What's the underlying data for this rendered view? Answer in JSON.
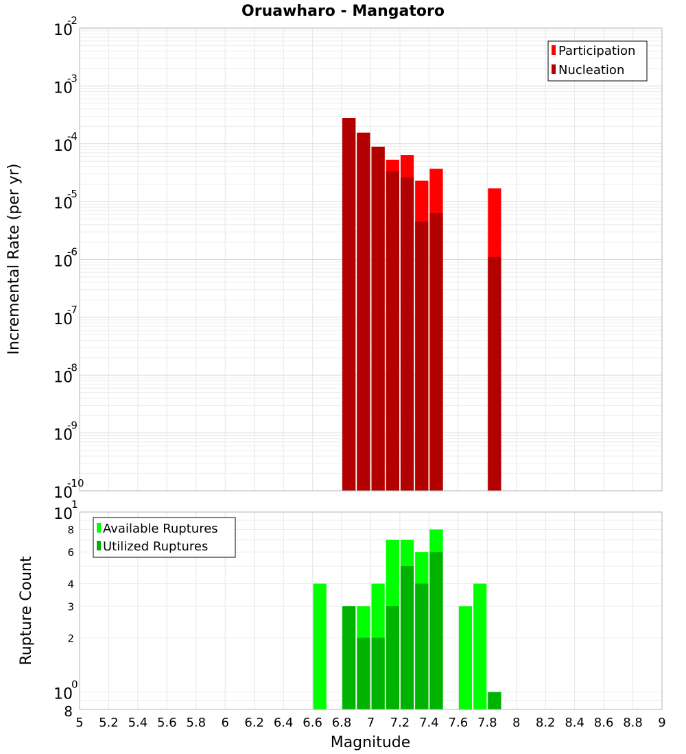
{
  "chart_data": [
    {
      "type": "bar",
      "title": "Oruawharo - Mangatoro",
      "xlabel": "Magnitude",
      "ylabel": "Incremental Rate (per yr)",
      "xlim": [
        5,
        9
      ],
      "ylim": [
        1e-10,
        0.01
      ],
      "yscale": "log",
      "xticks": [
        "5",
        "5.2",
        "5.4",
        "5.6",
        "5.8",
        "6",
        "6.2",
        "6.4",
        "6.6",
        "6.8",
        "7",
        "7.2",
        "7.4",
        "7.6",
        "7.8",
        "8",
        "8.2",
        "8.4",
        "8.6",
        "8.8",
        "9"
      ],
      "yticks": [
        {
          "base": "10",
          "exp": "-2"
        },
        {
          "base": "10",
          "exp": "-3"
        },
        {
          "base": "10",
          "exp": "-4"
        },
        {
          "base": "10",
          "exp": "-5"
        },
        {
          "base": "10",
          "exp": "-6"
        },
        {
          "base": "10",
          "exp": "-7"
        },
        {
          "base": "10",
          "exp": "-8"
        },
        {
          "base": "10",
          "exp": "-9"
        },
        {
          "base": "10",
          "exp": "-10"
        }
      ],
      "grid": true,
      "legend_position": "top-right",
      "bar_width": 0.1,
      "x": [
        6.85,
        6.95,
        7.05,
        7.15,
        7.25,
        7.35,
        7.45,
        7.85
      ],
      "series": [
        {
          "name": "Participation",
          "color": "#ff0000",
          "values": [
            0.00028,
            0.000155,
            8.9e-05,
            5.3e-05,
            6.4e-05,
            2.3e-05,
            3.7e-05,
            1.7e-05
          ]
        },
        {
          "name": "Nucleation",
          "color": "#b30000",
          "values": [
            0.00028,
            0.000155,
            8.9e-05,
            3.4e-05,
            2.6e-05,
            4.5e-06,
            6.3e-06,
            1.1e-06
          ]
        }
      ]
    },
    {
      "type": "bar",
      "xlabel": "Magnitude",
      "ylabel": "Rupture Count",
      "xlim": [
        5,
        9
      ],
      "ylim": [
        0.8,
        10
      ],
      "yscale": "log",
      "xticks": [
        "5",
        "5.2",
        "5.4",
        "5.6",
        "5.8",
        "6",
        "6.2",
        "6.4",
        "6.6",
        "6.8",
        "7",
        "7.2",
        "7.4",
        "7.6",
        "7.8",
        "8",
        "8.2",
        "8.4",
        "8.6",
        "8.8",
        "9"
      ],
      "yticks_major": [
        {
          "value": 10,
          "base": "10",
          "exp": "1"
        },
        {
          "value": 1,
          "base": "10",
          "exp": "0"
        }
      ],
      "yticks_minor": [
        {
          "value": 8,
          "label": "8"
        },
        {
          "value": 6,
          "label": "6"
        },
        {
          "value": 4,
          "label": "4"
        },
        {
          "value": 3,
          "label": "3"
        },
        {
          "value": 2,
          "label": "2"
        }
      ],
      "ytick_bottom": "8",
      "grid": true,
      "legend_position": "top-left",
      "bar_width": 0.1,
      "x": [
        6.65,
        6.85,
        6.95,
        7.05,
        7.15,
        7.25,
        7.35,
        7.45,
        7.65,
        7.75,
        7.85
      ],
      "series": [
        {
          "name": "Available Ruptures",
          "color": "#00ff00",
          "values": [
            4,
            3,
            3,
            4,
            7,
            7,
            6,
            8,
            3,
            4,
            1
          ]
        },
        {
          "name": "Utilized Ruptures",
          "color": "#00b300",
          "values": [
            0,
            3,
            2,
            2,
            3,
            5,
            4,
            6,
            0,
            0,
            1
          ]
        }
      ]
    }
  ]
}
